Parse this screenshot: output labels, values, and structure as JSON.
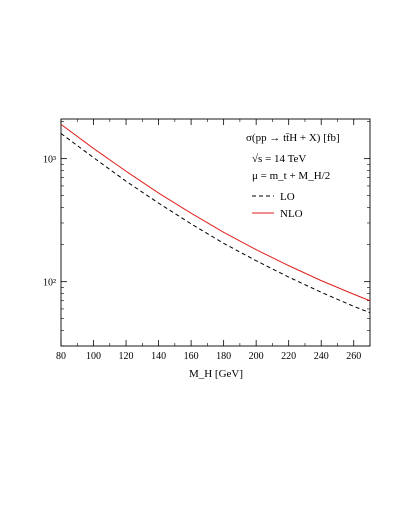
{
  "chart_data": {
    "type": "line",
    "title": "σ(pp → tt̄H + X) [fb]",
    "annotations": [
      "√s = 14 TeV",
      "μ = m_t + M_H/2"
    ],
    "xlabel": "M_H [GeV]",
    "ylabel": "",
    "xlim": [
      80,
      270
    ],
    "ylim": [
      30,
      2100
    ],
    "yscale": "log",
    "x_ticks": [
      80,
      100,
      120,
      140,
      160,
      180,
      200,
      220,
      240,
      260
    ],
    "y_tick_labels": [
      "10³",
      "10²"
    ],
    "grid": false,
    "legend_position": "top-right",
    "series": [
      {
        "name": "LO",
        "color": "#000000",
        "dash": "dashed",
        "x": [
          80,
          100,
          120,
          140,
          160,
          180,
          200,
          220,
          240,
          260,
          270
        ],
        "y": [
          1600,
          1020,
          655,
          435,
          295,
          205,
          148,
          109,
          82,
          63,
          56
        ]
      },
      {
        "name": "NLO",
        "color": "#e0201e",
        "dash": "solid",
        "x": [
          80,
          100,
          120,
          140,
          160,
          180,
          200,
          220,
          240,
          260,
          270
        ],
        "y": [
          1900,
          1210,
          790,
          525,
          360,
          252,
          182,
          135,
          102,
          79,
          70
        ]
      }
    ]
  }
}
